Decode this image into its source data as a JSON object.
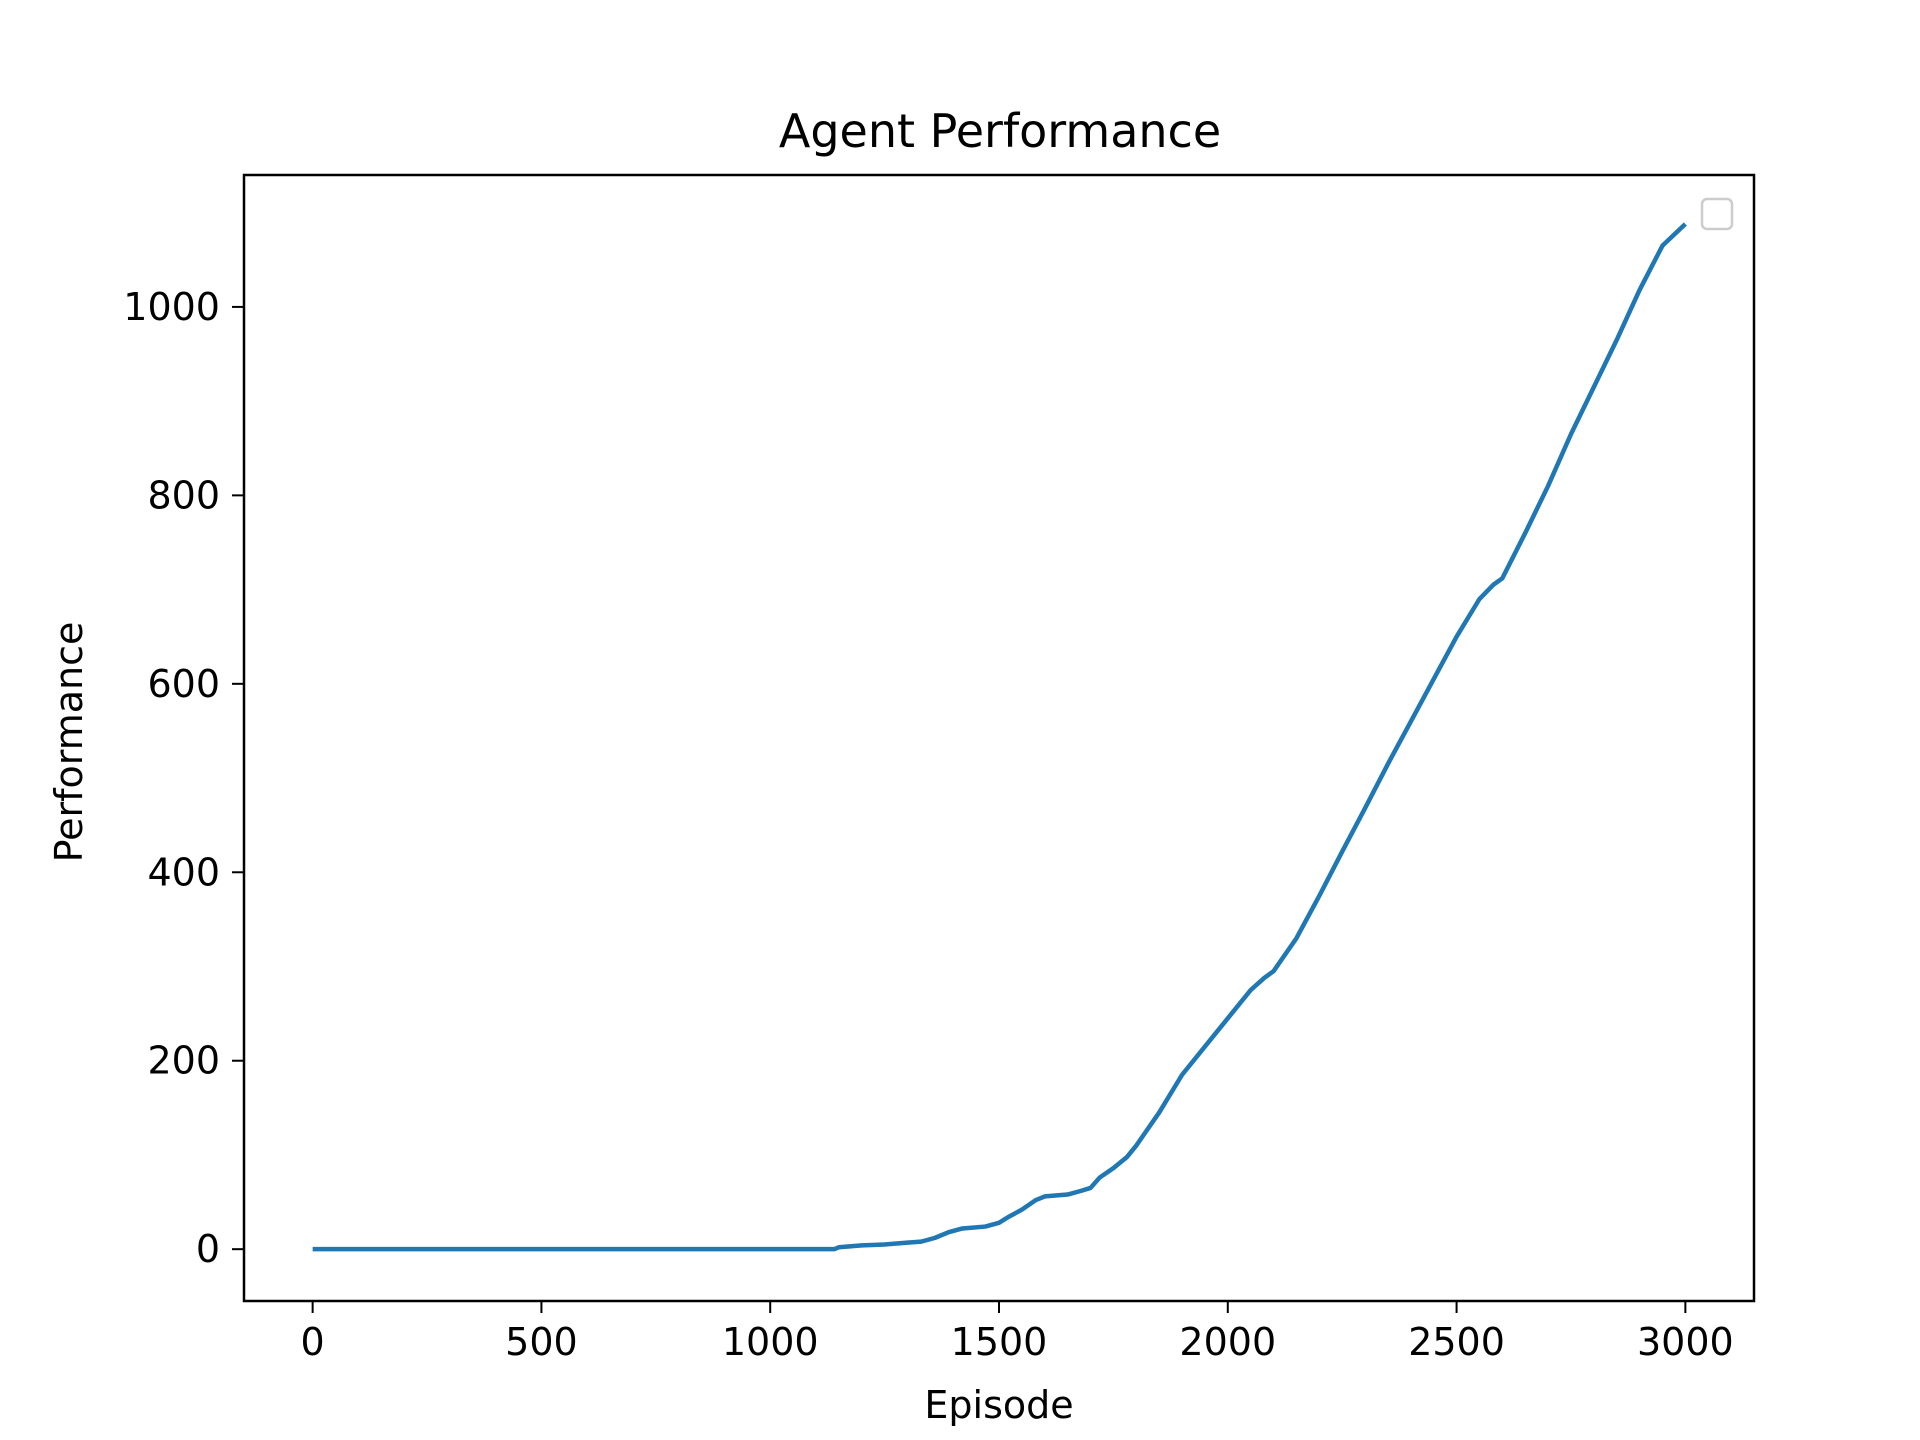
{
  "chart_data": {
    "type": "line",
    "title": "Agent Performance",
    "xlabel": "Episode",
    "ylabel": "Performance",
    "xlim": [
      -150,
      3150
    ],
    "ylim": [
      -55,
      1140
    ],
    "xticks": [
      0,
      500,
      1000,
      1500,
      2000,
      2500,
      3000
    ],
    "yticks": [
      0,
      200,
      400,
      600,
      800,
      1000
    ],
    "grid": false,
    "legend": {
      "placement": "upper right",
      "entries": []
    },
    "colors": {
      "line": "#1f77b4",
      "axes": "#000000",
      "legend_border": "#cccccc"
    },
    "series": [
      {
        "x": [
          0,
          200,
          400,
          600,
          800,
          1000,
          1140,
          1150,
          1200,
          1250,
          1300,
          1330,
          1360,
          1390,
          1420,
          1470,
          1500,
          1520,
          1550,
          1580,
          1600,
          1650,
          1680,
          1700,
          1720,
          1750,
          1780,
          1800,
          1850,
          1900,
          1950,
          2000,
          2050,
          2080,
          2100,
          2150,
          2200,
          2250,
          2300,
          2350,
          2400,
          2450,
          2500,
          2550,
          2580,
          2600,
          2650,
          2700,
          2750,
          2800,
          2850,
          2900,
          2950,
          3000
        ],
        "y": [
          0,
          0,
          0,
          0,
          0,
          0,
          0,
          2,
          4,
          5,
          7,
          8,
          12,
          18,
          22,
          24,
          28,
          34,
          42,
          52,
          56,
          58,
          62,
          65,
          76,
          86,
          98,
          110,
          145,
          185,
          215,
          245,
          275,
          288,
          295,
          330,
          375,
          422,
          468,
          515,
          560,
          605,
          650,
          690,
          705,
          712,
          760,
          810,
          865,
          915,
          965,
          1018,
          1065,
          1088
        ]
      }
    ]
  }
}
